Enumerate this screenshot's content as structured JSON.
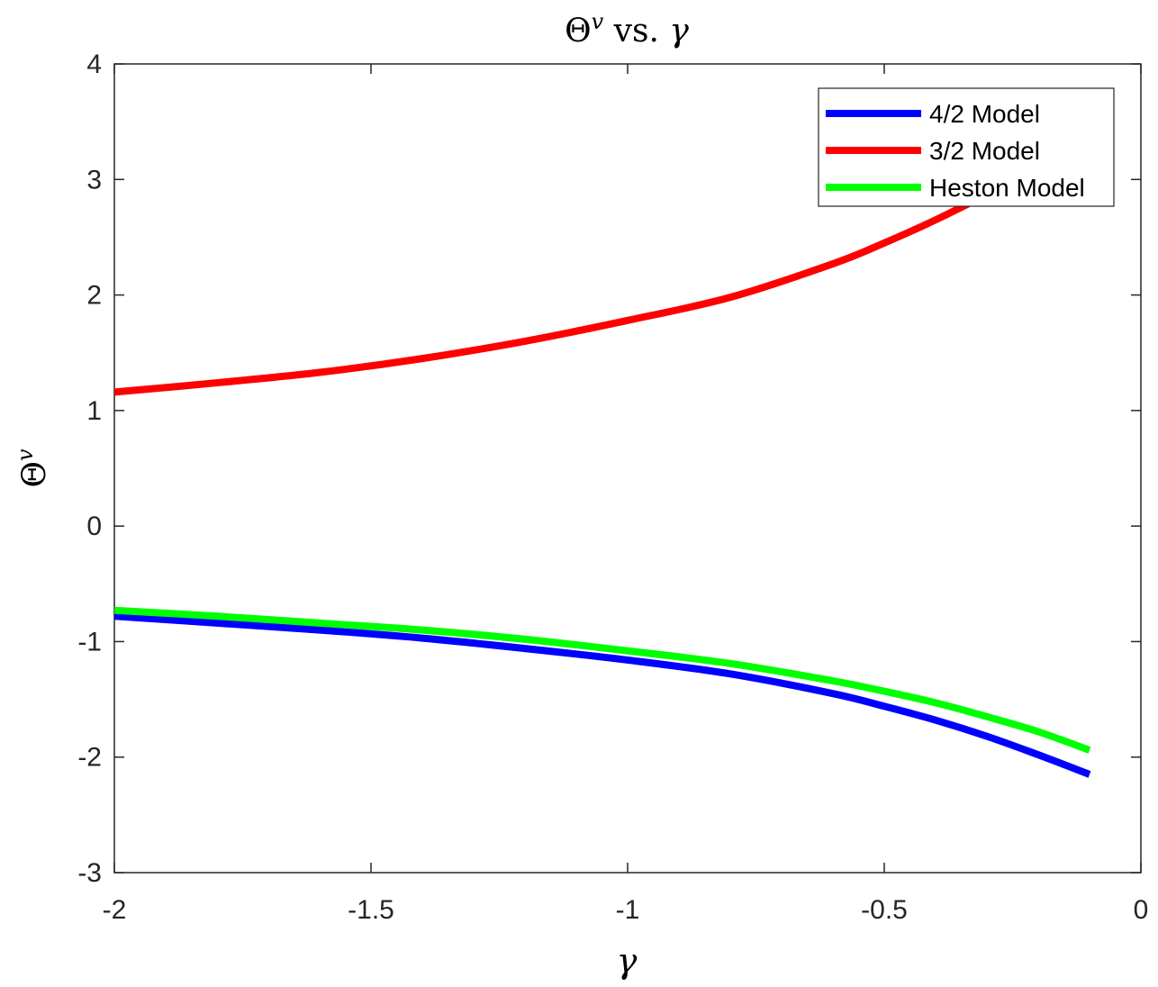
{
  "chart_data": {
    "type": "line",
    "title": "Θ^v vs. γ",
    "title_parts": {
      "base": "Θ",
      "sup": "v",
      "middle": " vs. ",
      "end": "γ"
    },
    "xlabel": "γ",
    "ylabel": "Θ^v",
    "ylabel_parts": {
      "base": "Θ",
      "sup": "v"
    },
    "xlim": [
      -2,
      0
    ],
    "ylim": [
      -3,
      4
    ],
    "xticks": [
      -2,
      -1.5,
      -1,
      -0.5,
      0
    ],
    "xtick_labels": [
      "-2",
      "-1.5",
      "-1",
      "-0.5",
      "0"
    ],
    "yticks": [
      -3,
      -2,
      -1,
      0,
      1,
      2,
      3,
      4
    ],
    "ytick_labels": [
      "-3",
      "-2",
      "-1",
      "0",
      "1",
      "2",
      "3",
      "4"
    ],
    "grid": false,
    "legend_position": "top-right",
    "series": [
      {
        "name": "4/2 Model",
        "color": "#0000ff",
        "x": [
          -2,
          -1.8,
          -1.6,
          -1.4,
          -1.2,
          -1.0,
          -0.8,
          -0.6,
          -0.5,
          -0.4,
          -0.3,
          -0.2,
          -0.1
        ],
        "y": [
          -0.78,
          -0.84,
          -0.9,
          -0.97,
          -1.06,
          -1.16,
          -1.28,
          -1.45,
          -1.56,
          -1.68,
          -1.82,
          -1.98,
          -2.15
        ]
      },
      {
        "name": "3/2 Model",
        "color": "#ff0000",
        "x": [
          -2,
          -1.8,
          -1.6,
          -1.4,
          -1.2,
          -1.0,
          -0.8,
          -0.6,
          -0.5,
          -0.4,
          -0.3,
          -0.2,
          -0.15
        ],
        "y": [
          1.16,
          1.24,
          1.33,
          1.45,
          1.6,
          1.78,
          1.98,
          2.27,
          2.45,
          2.65,
          2.87,
          3.1,
          3.22
        ]
      },
      {
        "name": "Heston Model",
        "color": "#00ff00",
        "x": [
          -2,
          -1.8,
          -1.6,
          -1.4,
          -1.2,
          -1.0,
          -0.8,
          -0.6,
          -0.5,
          -0.4,
          -0.3,
          -0.2,
          -0.1
        ],
        "y": [
          -0.73,
          -0.78,
          -0.84,
          -0.9,
          -0.98,
          -1.08,
          -1.19,
          -1.34,
          -1.43,
          -1.53,
          -1.65,
          -1.78,
          -1.94
        ]
      }
    ]
  }
}
